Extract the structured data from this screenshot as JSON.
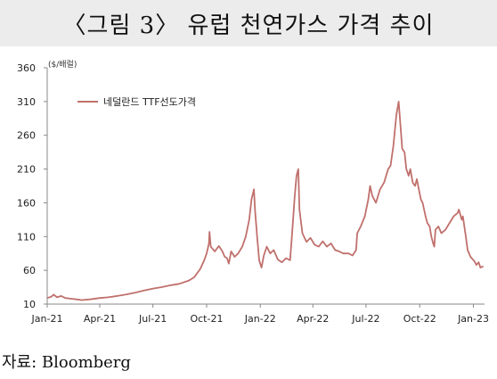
{
  "header": {
    "title": "〈그림 3〉 유럽 천연가스 가격 추이"
  },
  "source": "자료: Bloomberg",
  "colors": {
    "series": "#c0706c",
    "axis": "#888888",
    "title_band": "#ececec"
  },
  "chart_data": {
    "type": "line",
    "title": "〈그림 3〉 유럽 천연가스 가격 추이",
    "ylabel": "($/배럴)",
    "xlabel": "",
    "ylim": [
      10,
      360
    ],
    "yticks": [
      10,
      60,
      110,
      160,
      210,
      260,
      310,
      360
    ],
    "ytick_labels": [
      "10",
      "60",
      "110",
      "160",
      "210",
      "260",
      "310",
      "360"
    ],
    "xticks": [
      "2021-01-01",
      "2021-04-01",
      "2021-07-01",
      "2021-10-01",
      "2022-01-01",
      "2022-04-01",
      "2022-07-01",
      "2022-10-01",
      "2023-01-01"
    ],
    "xtick_labels": [
      "Jan-21",
      "Apr-21",
      "Jul-21",
      "Oct-21",
      "Jan-22",
      "Apr-22",
      "Jul-22",
      "Oct-22",
      "Jan-23"
    ],
    "xlim": [
      "2021-01-01",
      "2023-01-20"
    ],
    "grid": false,
    "legend": "top-left",
    "series": [
      {
        "name": "네덜란드 TTF선도가격",
        "color": "#c0706c",
        "points": [
          [
            "2021-01-01",
            19
          ],
          [
            "2021-01-08",
            21
          ],
          [
            "2021-01-12",
            24
          ],
          [
            "2021-01-18",
            20
          ],
          [
            "2021-01-25",
            22
          ],
          [
            "2021-02-01",
            19
          ],
          [
            "2021-02-10",
            18
          ],
          [
            "2021-02-20",
            17
          ],
          [
            "2021-03-01",
            16
          ],
          [
            "2021-03-15",
            17
          ],
          [
            "2021-04-01",
            19
          ],
          [
            "2021-04-15",
            20
          ],
          [
            "2021-05-01",
            22
          ],
          [
            "2021-05-15",
            24
          ],
          [
            "2021-06-01",
            27
          ],
          [
            "2021-06-15",
            30
          ],
          [
            "2021-07-01",
            33
          ],
          [
            "2021-07-15",
            35
          ],
          [
            "2021-08-01",
            38
          ],
          [
            "2021-08-15",
            40
          ],
          [
            "2021-09-01",
            45
          ],
          [
            "2021-09-10",
            50
          ],
          [
            "2021-09-20",
            62
          ],
          [
            "2021-09-27",
            75
          ],
          [
            "2021-10-01",
            85
          ],
          [
            "2021-10-05",
            100
          ],
          [
            "2021-10-06",
            117
          ],
          [
            "2021-10-08",
            95
          ],
          [
            "2021-10-15",
            88
          ],
          [
            "2021-10-22",
            96
          ],
          [
            "2021-10-28",
            88
          ],
          [
            "2021-11-01",
            80
          ],
          [
            "2021-11-05",
            78
          ],
          [
            "2021-11-08",
            70
          ],
          [
            "2021-11-12",
            88
          ],
          [
            "2021-11-18",
            80
          ],
          [
            "2021-11-24",
            85
          ],
          [
            "2021-12-01",
            95
          ],
          [
            "2021-12-07",
            110
          ],
          [
            "2021-12-13",
            135
          ],
          [
            "2021-12-17",
            165
          ],
          [
            "2021-12-21",
            180
          ],
          [
            "2021-12-23",
            148
          ],
          [
            "2021-12-27",
            105
          ],
          [
            "2021-12-30",
            75
          ],
          [
            "2022-01-03",
            64
          ],
          [
            "2022-01-07",
            82
          ],
          [
            "2022-01-12",
            95
          ],
          [
            "2022-01-18",
            85
          ],
          [
            "2022-01-24",
            90
          ],
          [
            "2022-01-31",
            76
          ],
          [
            "2022-02-07",
            72
          ],
          [
            "2022-02-14",
            78
          ],
          [
            "2022-02-21",
            75
          ],
          [
            "2022-02-24",
            110
          ],
          [
            "2022-03-01",
            170
          ],
          [
            "2022-03-04",
            200
          ],
          [
            "2022-03-07",
            210
          ],
          [
            "2022-03-09",
            150
          ],
          [
            "2022-03-14",
            115
          ],
          [
            "2022-03-21",
            102
          ],
          [
            "2022-03-28",
            108
          ],
          [
            "2022-04-04",
            98
          ],
          [
            "2022-04-11",
            95
          ],
          [
            "2022-04-18",
            103
          ],
          [
            "2022-04-25",
            95
          ],
          [
            "2022-05-02",
            100
          ],
          [
            "2022-05-09",
            90
          ],
          [
            "2022-05-16",
            88
          ],
          [
            "2022-05-23",
            85
          ],
          [
            "2022-06-01",
            85
          ],
          [
            "2022-06-08",
            82
          ],
          [
            "2022-06-14",
            90
          ],
          [
            "2022-06-16",
            115
          ],
          [
            "2022-06-22",
            125
          ],
          [
            "2022-06-29",
            140
          ],
          [
            "2022-07-05",
            165
          ],
          [
            "2022-07-08",
            185
          ],
          [
            "2022-07-12",
            170
          ],
          [
            "2022-07-18",
            160
          ],
          [
            "2022-07-25",
            180
          ],
          [
            "2022-08-01",
            190
          ],
          [
            "2022-08-08",
            210
          ],
          [
            "2022-08-12",
            215
          ],
          [
            "2022-08-17",
            245
          ],
          [
            "2022-08-22",
            290
          ],
          [
            "2022-08-26",
            310
          ],
          [
            "2022-08-29",
            275
          ],
          [
            "2022-09-01",
            240
          ],
          [
            "2022-09-05",
            235
          ],
          [
            "2022-09-08",
            210
          ],
          [
            "2022-09-12",
            200
          ],
          [
            "2022-09-15",
            210
          ],
          [
            "2022-09-19",
            190
          ],
          [
            "2022-09-23",
            185
          ],
          [
            "2022-09-26",
            195
          ],
          [
            "2022-10-03",
            165
          ],
          [
            "2022-10-06",
            160
          ],
          [
            "2022-10-11",
            140
          ],
          [
            "2022-10-14",
            130
          ],
          [
            "2022-10-18",
            125
          ],
          [
            "2022-10-21",
            110
          ],
          [
            "2022-10-24",
            100
          ],
          [
            "2022-10-26",
            95
          ],
          [
            "2022-10-28",
            120
          ],
          [
            "2022-11-02",
            125
          ],
          [
            "2022-11-07",
            115
          ],
          [
            "2022-11-14",
            120
          ],
          [
            "2022-11-21",
            130
          ],
          [
            "2022-11-28",
            140
          ],
          [
            "2022-12-05",
            145
          ],
          [
            "2022-12-07",
            150
          ],
          [
            "2022-12-12",
            135
          ],
          [
            "2022-12-14",
            140
          ],
          [
            "2022-12-19",
            110
          ],
          [
            "2022-12-22",
            90
          ],
          [
            "2022-12-27",
            80
          ],
          [
            "2023-01-03",
            73
          ],
          [
            "2023-01-06",
            68
          ],
          [
            "2023-01-10",
            72
          ],
          [
            "2023-01-13",
            64
          ],
          [
            "2023-01-18",
            66
          ]
        ]
      }
    ]
  }
}
